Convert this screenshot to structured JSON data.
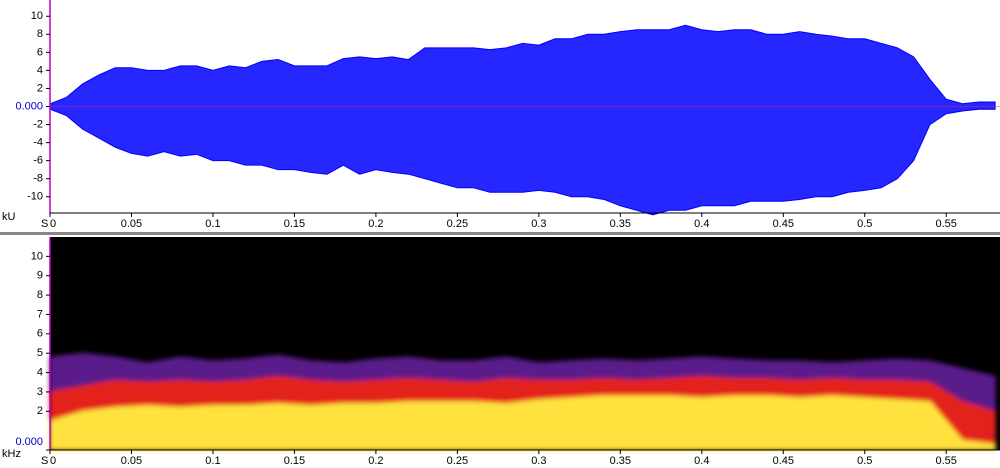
{
  "chart_data": [
    {
      "type": "area",
      "ylabel": "kU",
      "cursor_label": "S",
      "x": [
        0,
        0.01,
        0.02,
        0.03,
        0.04,
        0.05,
        0.06,
        0.07,
        0.08,
        0.09,
        0.1,
        0.11,
        0.12,
        0.13,
        0.14,
        0.15,
        0.16,
        0.17,
        0.18,
        0.19,
        0.2,
        0.21,
        0.22,
        0.23,
        0.24,
        0.25,
        0.26,
        0.27,
        0.28,
        0.29,
        0.3,
        0.31,
        0.32,
        0.33,
        0.34,
        0.35,
        0.36,
        0.37,
        0.38,
        0.39,
        0.4,
        0.41,
        0.42,
        0.43,
        0.44,
        0.45,
        0.46,
        0.47,
        0.48,
        0.49,
        0.5,
        0.51,
        0.52,
        0.53,
        0.54,
        0.55,
        0.56,
        0.57,
        0.58
      ],
      "series": [
        {
          "color": "#0000ff",
          "values": [
            0.3,
            1,
            2.5,
            3.5,
            4.3,
            4.3,
            4,
            4,
            4.5,
            4.5,
            4,
            4.5,
            4.3,
            5,
            5.2,
            4.5,
            4.5,
            4.5,
            5.3,
            5.5,
            5.3,
            5.5,
            5.2,
            6.5,
            6.5,
            6.5,
            6.5,
            6.3,
            6.5,
            7,
            6.8,
            7.5,
            7.5,
            8,
            8,
            8.3,
            8.5,
            8.5,
            8.5,
            9,
            8.5,
            8.3,
            8.5,
            8.5,
            8,
            8,
            8.3,
            8,
            7.8,
            7.5,
            7.5,
            7,
            6.5,
            5.5,
            3,
            0.8,
            0.3,
            0.5,
            0.5
          ]
        },
        {
          "color": "#0000ff",
          "values": [
            -0.3,
            -1,
            -2.5,
            -3.5,
            -4.5,
            -5.2,
            -5.5,
            -5,
            -5.5,
            -5.3,
            -6,
            -6,
            -6.5,
            -6.5,
            -7,
            -7,
            -7.3,
            -7.5,
            -6.5,
            -7.5,
            -7,
            -7.3,
            -7.5,
            -8,
            -8.5,
            -9,
            -9,
            -9.5,
            -9.5,
            -9.5,
            -9.3,
            -9.5,
            -10,
            -10,
            -10.3,
            -11,
            -11.5,
            -12,
            -11.5,
            -11.5,
            -11,
            -11,
            -11,
            -10.5,
            -10.5,
            -10.5,
            -10.3,
            -10,
            -10,
            -9.5,
            -9.3,
            -9,
            -8,
            -6,
            -2,
            -0.8,
            -0.5,
            -0.3,
            -0.3
          ]
        }
      ],
      "xlim": [
        0,
        0.583
      ],
      "xticks": [
        0,
        0.05,
        0.1,
        0.15,
        0.2,
        0.25,
        0.3,
        0.35,
        0.4,
        0.45,
        0.5,
        0.55
      ],
      "ylim": [
        -11.8,
        11.8
      ],
      "yticks": [
        10,
        8,
        6,
        4,
        2,
        {
          "value": 0,
          "label": "0.000"
        },
        -2,
        -4,
        -6,
        -8,
        -10
      ],
      "background": "#ffffff"
    },
    {
      "type": "area",
      "ylabel": "kHz",
      "cursor_label": "S",
      "x": [
        0,
        0.02,
        0.04,
        0.06,
        0.08,
        0.1,
        0.12,
        0.14,
        0.16,
        0.18,
        0.2,
        0.22,
        0.24,
        0.26,
        0.28,
        0.3,
        0.32,
        0.34,
        0.36,
        0.38,
        0.4,
        0.42,
        0.44,
        0.46,
        0.48,
        0.5,
        0.52,
        0.54,
        0.56,
        0.58
      ],
      "series": [
        {
          "color": "#5a1a8a",
          "values": [
            4.8,
            5.0,
            4.8,
            4.5,
            4.8,
            4.6,
            4.7,
            4.9,
            4.6,
            4.5,
            4.7,
            4.8,
            4.6,
            4.6,
            4.8,
            4.5,
            4.6,
            4.7,
            4.6,
            4.7,
            4.8,
            4.7,
            4.6,
            4.6,
            4.5,
            4.6,
            4.7,
            4.6,
            4.2,
            3.8
          ]
        },
        {
          "color": "#e3201b",
          "values": [
            3.0,
            3.3,
            3.6,
            3.5,
            3.6,
            3.5,
            3.6,
            3.8,
            3.6,
            3.5,
            3.6,
            3.7,
            3.6,
            3.5,
            3.7,
            3.6,
            3.6,
            3.7,
            3.6,
            3.7,
            3.8,
            3.7,
            3.7,
            3.6,
            3.7,
            3.6,
            3.6,
            3.5,
            2.5,
            2.0
          ]
        },
        {
          "color": "#ffe23c",
          "values": [
            1.5,
            2.0,
            2.2,
            2.3,
            2.2,
            2.3,
            2.3,
            2.4,
            2.3,
            2.4,
            2.4,
            2.5,
            2.5,
            2.5,
            2.4,
            2.6,
            2.7,
            2.8,
            2.8,
            2.8,
            2.7,
            2.8,
            2.8,
            2.7,
            2.8,
            2.7,
            2.6,
            2.5,
            0.5,
            0.3
          ]
        }
      ],
      "xlim": [
        0,
        0.583
      ],
      "xticks": [
        0,
        0.05,
        0.1,
        0.15,
        0.2,
        0.25,
        0.3,
        0.35,
        0.4,
        0.45,
        0.5,
        0.55
      ],
      "ylim": [
        0,
        11
      ],
      "yticks": [
        10,
        9,
        8,
        7,
        6,
        5,
        4,
        3,
        2,
        {
          "value": 0,
          "label": "0.000"
        }
      ],
      "background": "#000000"
    }
  ]
}
